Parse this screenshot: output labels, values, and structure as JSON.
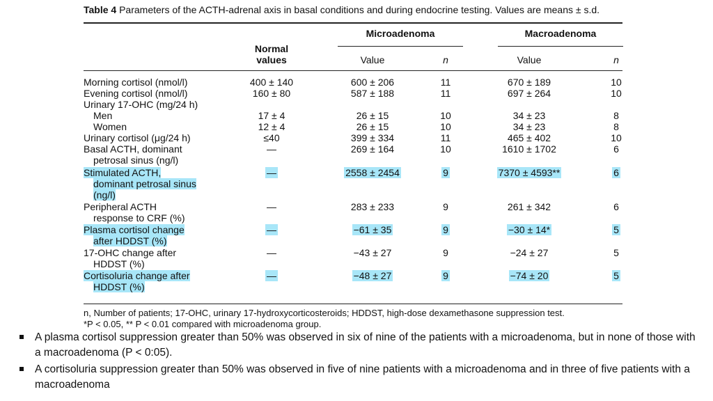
{
  "table": {
    "caption_label": "Table 4",
    "caption_text": "Parameters of the ACTH-adrenal axis in basal conditions and during endocrine testing. Values are means ± s.d.",
    "headers": {
      "normal": [
        "Normal",
        "values"
      ],
      "micro": "Microadenoma",
      "macro": "Macroadenoma",
      "value": "Value",
      "n": "n"
    },
    "rows": [
      {
        "param": [
          "Morning cortisol (nmol/l)"
        ],
        "normal": "400 ± 140",
        "micro_value": "600 ± 206",
        "micro_n": "11",
        "macro_value": "670 ± 189",
        "macro_n": "10",
        "highlight": false
      },
      {
        "param": [
          "Evening cortisol (nmol/l)"
        ],
        "normal": "160 ± 80",
        "micro_value": "587 ± 188",
        "micro_n": "11",
        "macro_value": "697 ± 264",
        "macro_n": "10",
        "highlight": false
      },
      {
        "param": [
          "Urinary 17-OHC (mg/24 h)"
        ],
        "normal": "",
        "micro_value": "",
        "micro_n": "",
        "macro_value": "",
        "macro_n": "",
        "highlight": false
      },
      {
        "param": [
          "Men"
        ],
        "indent": true,
        "normal": "17 ± 4",
        "micro_value": "26 ± 15",
        "micro_n": "10",
        "macro_value": "34 ± 23",
        "macro_n": "8",
        "highlight": false
      },
      {
        "param": [
          "Women"
        ],
        "indent": true,
        "normal": "12 ± 4",
        "micro_value": "26 ± 15",
        "micro_n": "10",
        "macro_value": "34 ± 23",
        "macro_n": "8",
        "highlight": false
      },
      {
        "param": [
          "Urinary cortisol (μg/24 h)"
        ],
        "normal": "≤40",
        "micro_value": "399 ± 334",
        "micro_n": "11",
        "macro_value": "465 ± 402",
        "macro_n": "10",
        "highlight": false
      },
      {
        "param": [
          "Basal ACTH, dominant",
          "petrosal sinus (ng/l)"
        ],
        "normal": "—",
        "micro_value": "269 ± 164",
        "micro_n": "10",
        "macro_value": "1610 ± 1702",
        "macro_n": "6",
        "highlight": false
      },
      {
        "param": [
          "Stimulated ACTH,",
          "dominant petrosal sinus",
          "(ng/l)"
        ],
        "normal": "—",
        "micro_value": "2558 ± 2454",
        "micro_n": "9",
        "macro_value": "7370 ± 4593**",
        "macro_n": "6",
        "highlight": true
      },
      {
        "param": [
          "Peripheral ACTH",
          "response to CRF (%)"
        ],
        "normal": "—",
        "micro_value": "283 ± 233",
        "micro_n": "9",
        "macro_value": "261 ± 342",
        "macro_n": "6",
        "highlight": false
      },
      {
        "param": [
          "Plasma cortisol change",
          "after HDDST (%)"
        ],
        "normal": "—",
        "micro_value": "−61 ± 35",
        "micro_n": "9",
        "macro_value": "−30 ± 14*",
        "macro_n": "5",
        "highlight": true
      },
      {
        "param": [
          "17-OHC change after",
          "HDDST (%)"
        ],
        "normal": "—",
        "micro_value": "−43 ± 27",
        "micro_n": "9",
        "macro_value": "−24 ± 27",
        "macro_n": "5",
        "highlight": false
      },
      {
        "param": [
          "Cortisoluria change after",
          "HDDST (%)"
        ],
        "normal": "—",
        "micro_value": "−48 ± 27",
        "micro_n": "9",
        "macro_value": "−74 ± 20",
        "macro_n": "5",
        "highlight": true
      }
    ],
    "footnote_1": "n, Number of patients; 17-OHC, urinary 17-hydroxycorticosteroids; HDDST, high-dose dexamethasone suppression test.",
    "footnote_2": "*P < 0.05, ** P < 0.01 compared with microadenoma group."
  },
  "bullets": [
    "A plasma cortisol suppression greater than 50% was observed in six of nine of the patients with a microadenoma, but in none of those with a macroadenoma (P < 0:05).",
    "A cortisoluria suppression greater than 50% was observed in five of nine patients with a microadenoma and in three of five patients with a macroadenoma"
  ],
  "colors": {
    "highlight": "#a8e6f8",
    "text": "#111111"
  }
}
